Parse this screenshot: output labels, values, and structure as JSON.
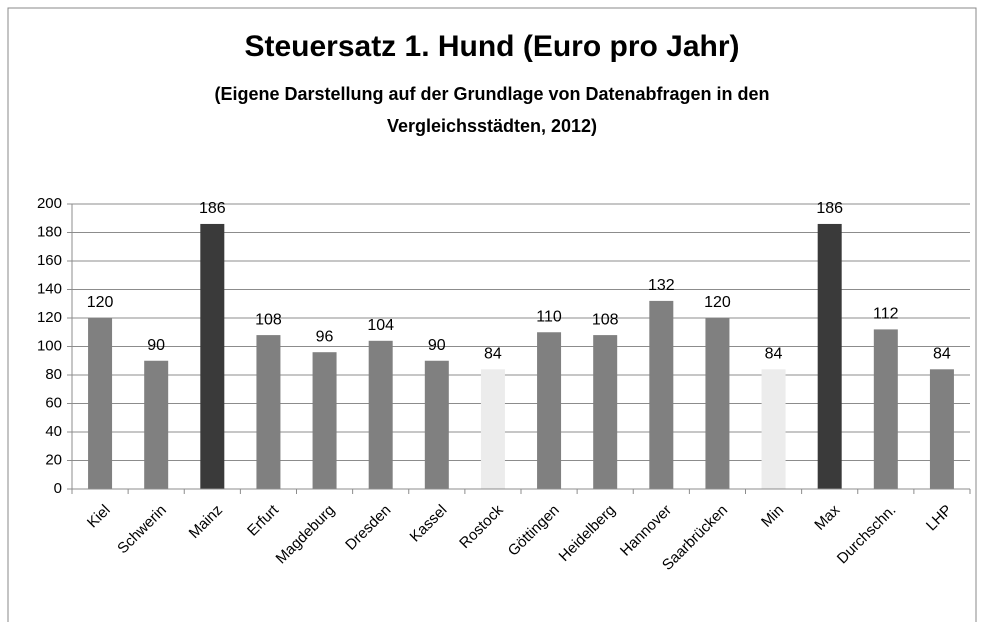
{
  "chart_data": {
    "type": "bar",
    "title": "Steuersatz  1. Hund (Euro pro Jahr)",
    "subtitle": [
      "(Eigene Darstellung auf der Grundlage von Datenabfragen in den",
      "Vergleichsstädten, 2012)"
    ],
    "categories": [
      "Kiel",
      "Schwerin",
      "Mainz",
      "Erfurt",
      "Magdeburg",
      "Dresden",
      "Kassel",
      "Rostock",
      "Göttingen",
      "Heidelberg",
      "Hannover",
      "Saarbrücken",
      "Min",
      "Max",
      "Durchschn.",
      "LHP"
    ],
    "values": [
      120,
      90,
      186,
      108,
      96,
      104,
      90,
      84,
      110,
      108,
      132,
      120,
      84,
      186,
      112,
      84
    ],
    "colors": [
      "#808080",
      "#808080",
      "#3a3a3a",
      "#808080",
      "#808080",
      "#808080",
      "#808080",
      "#ececec",
      "#808080",
      "#808080",
      "#808080",
      "#808080",
      "#ececec",
      "#3a3a3a",
      "#808080",
      "#808080"
    ],
    "ylim": [
      0,
      200
    ],
    "yticks": [
      0,
      20,
      40,
      60,
      80,
      100,
      120,
      140,
      160,
      180,
      200
    ],
    "grid": true
  }
}
